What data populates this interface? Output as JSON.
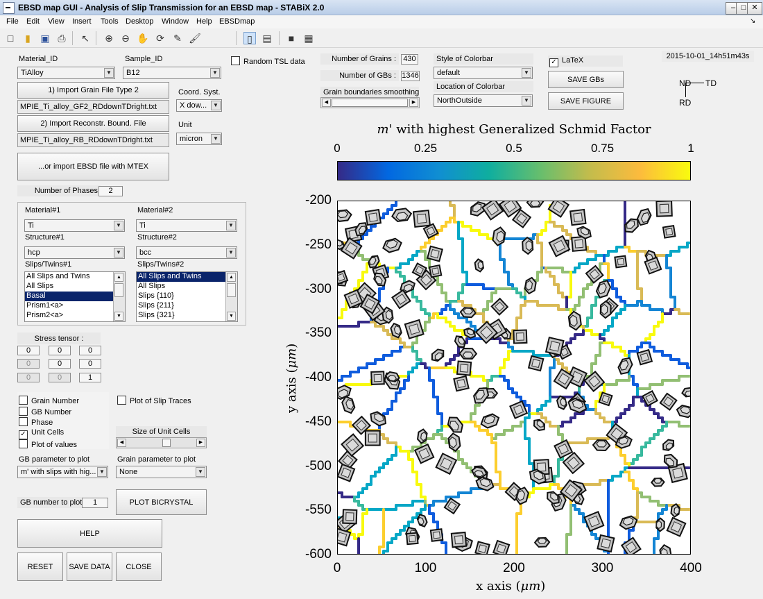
{
  "window": {
    "title": "EBSD map GUI - Analysis of Slip Transmission for an EBSD map -  STABiX 2.0"
  },
  "menu": [
    "File",
    "Edit",
    "View",
    "Insert",
    "Tools",
    "Desktop",
    "Window",
    "Help",
    "EBSDmap"
  ],
  "toolbar": [
    "new-file-icon",
    "open-folder-icon",
    "save-icon",
    "print-icon",
    "pointer-icon",
    "zoom-in-icon",
    "zoom-out-icon",
    "pan-hand-icon",
    "rotate-3d-icon",
    "data-cursor-icon",
    "brush-icon",
    "colorbar-toggle-icon",
    "legend-toggle-icon",
    "hide-tools-icon",
    "dock-icon"
  ],
  "left": {
    "material_id_label": "Material_ID",
    "material_id_value": "TiAlloy",
    "sample_id_label": "Sample_ID",
    "sample_id_value": "B12",
    "import_gf2_button": "1) Import Grain File Type 2",
    "gf2_file": "MPIE_Ti_alloy_GF2_RDdownTDright.txt",
    "coord_label": "Coord. Syst.",
    "coord_value": "X dow...",
    "import_rb_button": "2) Import Reconstr. Bound. File",
    "rb_file": "MPIE_Ti_alloy_RB_RDdownTDright.txt",
    "unit_label": "Unit",
    "unit_value": "micron",
    "mtex_button": "...or import EBSD file with MTEX",
    "phases_label": "Number of Phases",
    "phases_value": "2"
  },
  "phase1": {
    "material_label": "Material#1",
    "material_value": "Ti",
    "structure_label": "Structure#1",
    "structure_value": "hcp",
    "slips_label": "Slips/Twins#1",
    "slips": [
      "All Slips and Twins",
      "All Slips",
      "Basal",
      "Prism1<a>",
      "Prism2<a>"
    ],
    "selected": 2
  },
  "phase2": {
    "material_label": "Material#2",
    "material_value": "Ti",
    "structure_label": "Structure#2",
    "structure_value": "bcc",
    "slips_label": "Slips/Twins#2",
    "slips": [
      "All Slips and Twins",
      "All Slips",
      "Slips {110}",
      "Slips {211}",
      "Slips {321}"
    ],
    "selected": 0
  },
  "stress": {
    "label": "Stress tensor :",
    "values": [
      "0",
      "0",
      "0",
      "0",
      "0",
      "0",
      "0",
      "0",
      "1"
    ]
  },
  "options": {
    "grain_number": "Grain Number",
    "gb_number": "GB Number",
    "phase": "Phase",
    "unit_cells": "Unit Cells",
    "plot_values": "Plot of values",
    "slip_traces": "Plot of Slip Traces",
    "size_cells_label": "Size of Unit Cells"
  },
  "gbparam": {
    "label": "GB parameter to plot",
    "value": "m' with slips with hig..."
  },
  "grainparam": {
    "label": "Grain parameter to plot",
    "value": "None"
  },
  "gbnum": {
    "label": "GB number to plot",
    "value": "1"
  },
  "buttons": {
    "bicrystal": "PLOT BICRYSTAL",
    "help": "HELP",
    "reset": "RESET",
    "save_data": "SAVE DATA",
    "close": "CLOSE"
  },
  "top": {
    "random_tsl": "Random TSL data",
    "grains_label": "Number of Grains :",
    "grains_value": "430",
    "gbs_label": "Number of GBs :",
    "gbs_value": "1346",
    "smoothing_label": "Grain boundaries smoothing",
    "style_label": "Style of Colorbar",
    "style_value": "default",
    "location_label": "Location of Colorbar",
    "location_value": "NorthOutside",
    "latex": "LaTeX",
    "save_gbs": "SAVE GBs",
    "save_figure": "SAVE FIGURE",
    "timestamp": "2015-10-01_14h51m43s",
    "axes_nd": "ND",
    "axes_td": "TD",
    "axes_rd": "RD"
  },
  "chart_data": {
    "type": "heatmap",
    "title_prefix": "m'",
    "title_rest": " with highest Generalized Schmid Factor",
    "colorbar_ticks": [
      "0",
      "0.25",
      "0.5",
      "0.75",
      "1"
    ],
    "colorbar_range": [
      0,
      1
    ],
    "xlabel_prefix": "x axis (",
    "xlabel_unit": "μm",
    "xlabel_suffix": ")",
    "ylabel_prefix": "y axis (",
    "ylabel_unit": "μm",
    "ylabel_suffix": ")",
    "xlim": [
      0,
      400
    ],
    "ylim": [
      -600,
      -200
    ],
    "xticks": [
      "0",
      "100",
      "200",
      "300",
      "400"
    ],
    "yticks": [
      "-200",
      "-250",
      "-300",
      "-350",
      "-400",
      "-450",
      "-500",
      "-550",
      "-600"
    ]
  }
}
